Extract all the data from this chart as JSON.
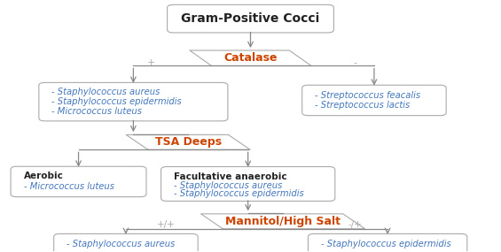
{
  "bg_color": "#ffffff",
  "title": "Gram-Positive Cocci",
  "catalase_label": "Catalase",
  "tsa_label": "TSA Deeps",
  "mannitol_label": "Mannitol/High Salt",
  "cat_pos_text": [
    "- Staphylococcus aureus",
    "- Staphylococcus epidermidis",
    "- Micrococcus luteus"
  ],
  "cat_neg_text": [
    "- Streptococcus feacalis",
    "- Streptococcus lactis"
  ],
  "aerobic_title": "Aerobic",
  "aerobic_items": [
    "- Micrococcus luteus"
  ],
  "facultative_title": "Facultative anaerobic",
  "facultative_items": [
    "- Staphylococcus aureus",
    "- Staphylococcus epidermidis"
  ],
  "staph_aureus_text": [
    "- Staphylococcus aureus"
  ],
  "staph_epid_text": [
    "- Staphylococcus epidermidis"
  ],
  "box_edge": "#aaaaaa",
  "arrow_color": "#888888",
  "blue_color": "#4477bb",
  "dark_color": "#222222",
  "orange_color": "#cc4400",
  "label_color": "#aaaaaa"
}
